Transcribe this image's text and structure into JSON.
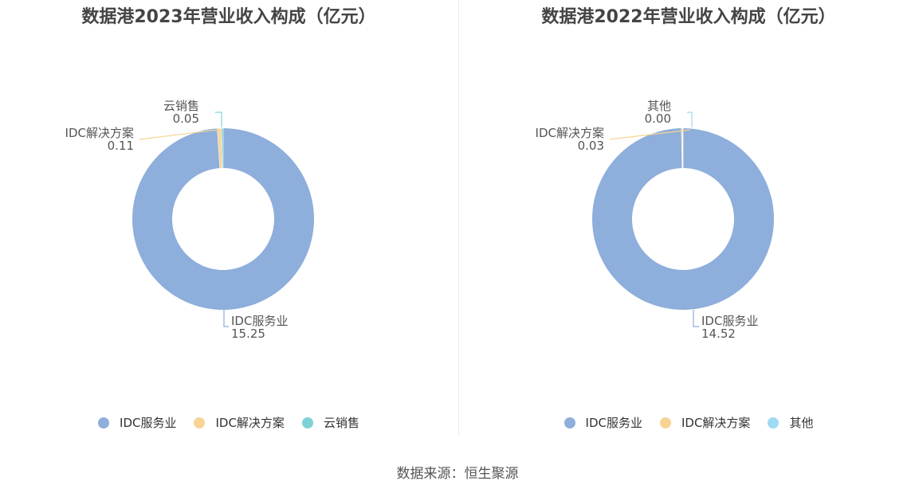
{
  "source_text": "数据来源：恒生聚源",
  "colors": {
    "idc_service": "#8eaedb",
    "idc_solution": "#f9d393",
    "cloud_sales": "#7ed2d6",
    "other": "#9fd9f4"
  },
  "chart_data": [
    {
      "type": "pie",
      "variant": "donut",
      "title": "数据港2023年营业收入构成（亿元）",
      "slices": [
        {
          "name": "IDC服务业",
          "value": 15.25,
          "label": "15.25",
          "color": "#8eaedb"
        },
        {
          "name": "IDC解决方案",
          "value": 0.11,
          "label": "0.11",
          "color": "#f9d393"
        },
        {
          "name": "云销售",
          "value": 0.05,
          "label": "0.05",
          "color": "#7ed2d6"
        }
      ],
      "legend": [
        "IDC服务业",
        "IDC解决方案",
        "云销售"
      ],
      "legend_position": "bottom"
    },
    {
      "type": "pie",
      "variant": "donut",
      "title": "数据港2022年营业收入构成（亿元）",
      "slices": [
        {
          "name": "IDC服务业",
          "value": 14.52,
          "label": "14.52",
          "color": "#8eaedb"
        },
        {
          "name": "IDC解决方案",
          "value": 0.03,
          "label": "0.03",
          "color": "#f9d393"
        },
        {
          "name": "其他",
          "value": 0.0,
          "label": "0.00",
          "color": "#9fd9f4"
        }
      ],
      "legend": [
        "IDC服务业",
        "IDC解决方案",
        "其他"
      ],
      "legend_position": "bottom"
    }
  ]
}
